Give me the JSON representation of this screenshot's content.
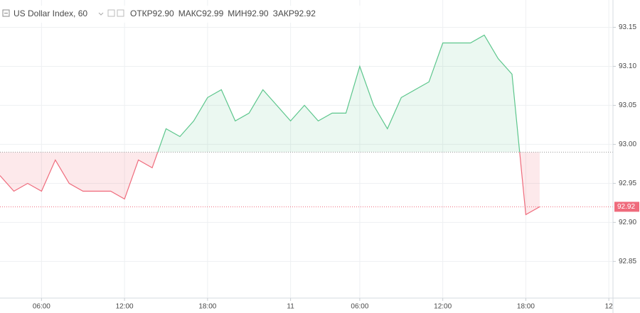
{
  "chart_data": {
    "type": "baseline",
    "title": "US Dollar Index, 60",
    "ohlc": [
      {
        "label": "ОТКР",
        "value": "92.90"
      },
      {
        "label": "МАКС",
        "value": "92.99"
      },
      {
        "label": "МИН",
        "value": "92.90"
      },
      {
        "label": "ЗАКР",
        "value": "92.92"
      }
    ],
    "x": [
      0,
      1,
      2,
      3,
      4,
      5,
      6,
      7,
      8,
      9,
      10,
      11,
      12,
      13,
      14,
      15,
      16,
      17,
      18,
      19,
      20,
      21,
      22,
      23,
      24,
      25,
      26,
      27,
      28,
      29,
      30,
      31,
      32,
      33,
      34,
      35,
      36,
      37,
      38,
      39
    ],
    "values": [
      92.96,
      92.94,
      92.95,
      92.94,
      92.98,
      92.95,
      92.94,
      92.94,
      92.94,
      92.93,
      92.98,
      92.97,
      93.02,
      93.01,
      93.03,
      93.06,
      93.07,
      93.03,
      93.04,
      93.07,
      93.05,
      93.03,
      93.05,
      93.03,
      93.04,
      93.04,
      93.1,
      93.05,
      93.02,
      93.06,
      93.07,
      93.08,
      93.13,
      93.13,
      93.13,
      93.14,
      93.11,
      93.09,
      92.91,
      92.92
    ],
    "baseline": 92.99,
    "up_color": "#5cc68c",
    "down_color": "#ef6b7c",
    "xlim": [
      0,
      44.3
    ],
    "xticks": [
      {
        "value": 3,
        "label": "06:00"
      },
      {
        "value": 9,
        "label": "12:00"
      },
      {
        "value": 15,
        "label": "18:00"
      },
      {
        "value": 21,
        "label": "11"
      },
      {
        "value": 26,
        "label": "06:00"
      },
      {
        "value": 32,
        "label": "12:00"
      },
      {
        "value": 38,
        "label": "18:00"
      },
      {
        "value": 44,
        "label": "12"
      }
    ],
    "ylim": [
      92.803,
      93.185
    ],
    "yticks": [
      92.85,
      {
        "value": 92.9,
        "label": "92.90"
      },
      92.95,
      {
        "value": 93,
        "label": "93.00"
      },
      93.05,
      {
        "value": 93.1,
        "label": "93.10"
      },
      93.15
    ],
    "grid": true
  }
}
